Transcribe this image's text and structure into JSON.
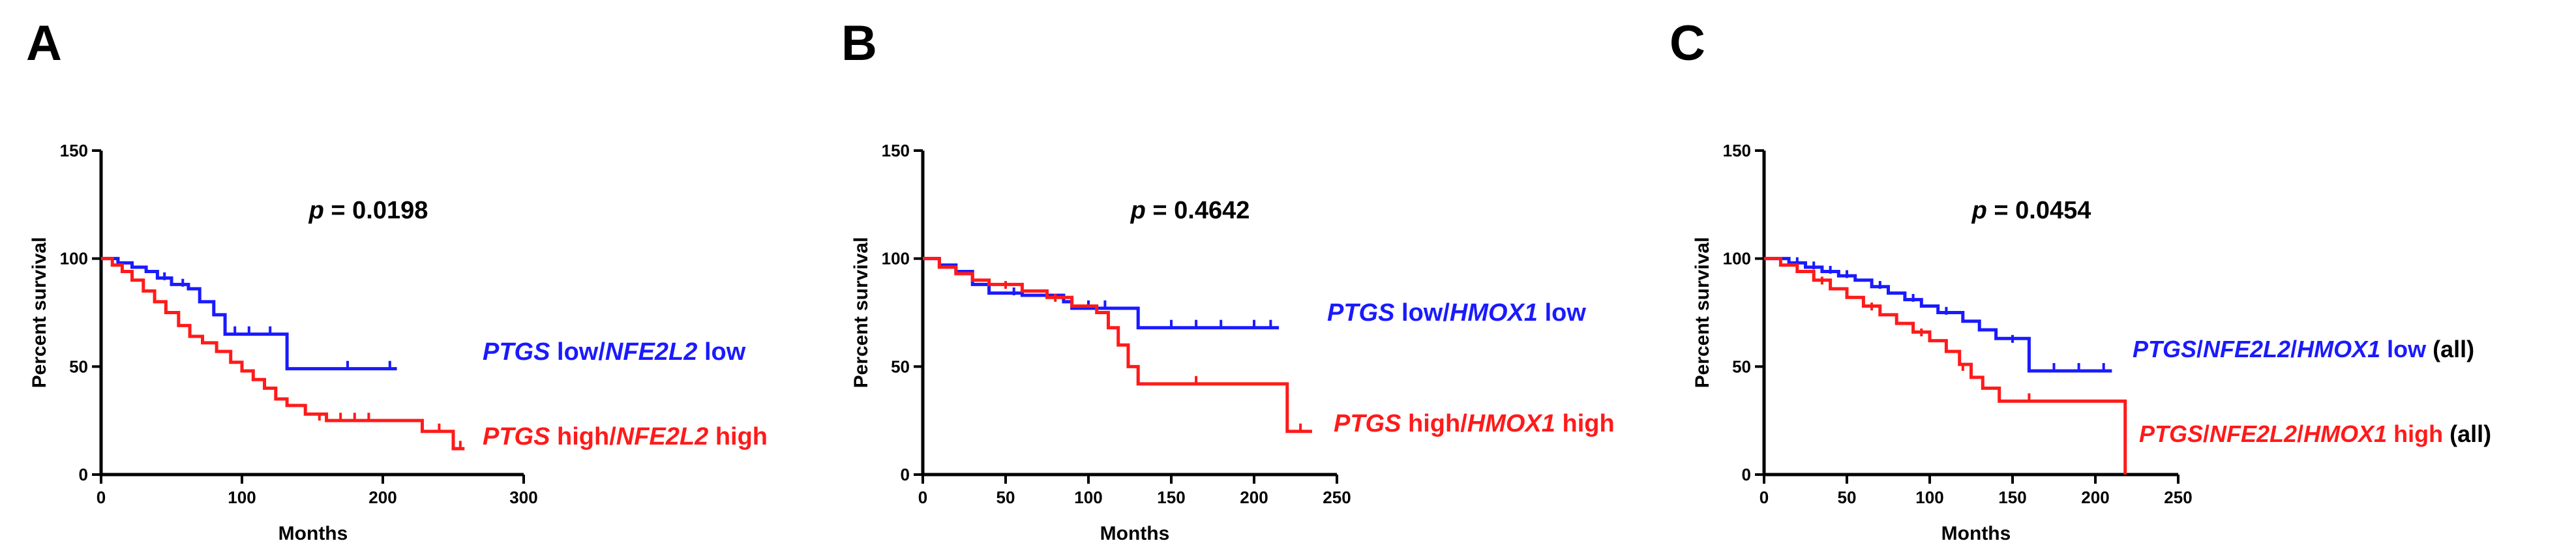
{
  "colors": {
    "blue": "#1a1aff",
    "red": "#ff1a1a",
    "axis": "#000000"
  },
  "chart_data": [
    {
      "type": "line",
      "panel": "A",
      "title": "",
      "xlabel": "Months",
      "ylabel": "Percent survival",
      "xlim": [
        0,
        300
      ],
      "ylim": [
        0,
        150
      ],
      "xticks": [
        0,
        100,
        200,
        300
      ],
      "yticks": [
        0,
        50,
        100,
        150
      ],
      "pvalue": {
        "label": "p",
        "value": "= 0.0198"
      },
      "series": [
        {
          "name": "PTGS low/NFE2L2 low",
          "color": "blue",
          "legend": [
            {
              "text": "PTGS",
              "italic": true
            },
            {
              "text": " low/",
              "italic": false
            },
            {
              "text": "NFE2L2",
              "italic": true
            },
            {
              "text": " low",
              "italic": false
            }
          ],
          "steps": [
            [
              0,
              100
            ],
            [
              12,
              98
            ],
            [
              22,
              96
            ],
            [
              32,
              94
            ],
            [
              40,
              91
            ],
            [
              50,
              88
            ],
            [
              62,
              86
            ],
            [
              70,
              80
            ],
            [
              80,
              74
            ],
            [
              88,
              65
            ],
            [
              132,
              65
            ],
            [
              132,
              49
            ],
            [
              210,
              49
            ]
          ],
          "censors": [
            [
              45,
              90
            ],
            [
              58,
              87
            ],
            [
              95,
              65
            ],
            [
              105,
              65
            ],
            [
              120,
              65
            ],
            [
              175,
              49
            ],
            [
              205,
              49
            ]
          ]
        },
        {
          "name": "PTGS high/NFE2L2 high",
          "color": "red",
          "legend": [
            {
              "text": "PTGS",
              "italic": true
            },
            {
              "text": " high/",
              "italic": false
            },
            {
              "text": "NFE2L2",
              "italic": true
            },
            {
              "text": " high",
              "italic": false
            }
          ],
          "steps": [
            [
              0,
              100
            ],
            [
              8,
              97
            ],
            [
              15,
              94
            ],
            [
              22,
              90
            ],
            [
              30,
              85
            ],
            [
              38,
              80
            ],
            [
              46,
              75
            ],
            [
              55,
              69
            ],
            [
              63,
              64
            ],
            [
              72,
              61
            ],
            [
              82,
              57
            ],
            [
              92,
              52
            ],
            [
              100,
              48
            ],
            [
              108,
              44
            ],
            [
              116,
              40
            ],
            [
              124,
              35
            ],
            [
              132,
              32
            ],
            [
              145,
              28
            ],
            [
              160,
              25
            ],
            [
              228,
              25
            ],
            [
              228,
              20
            ],
            [
              250,
              20
            ],
            [
              250,
              12
            ],
            [
              258,
              12
            ]
          ],
          "censors": [
            [
              155,
              25
            ],
            [
              170,
              25
            ],
            [
              180,
              25
            ],
            [
              190,
              25
            ],
            [
              240,
              20
            ],
            [
              255,
              12
            ]
          ]
        }
      ]
    },
    {
      "type": "line",
      "panel": "B",
      "title": "",
      "xlabel": "Months",
      "ylabel": "Percent survival",
      "xlim": [
        0,
        250
      ],
      "ylim": [
        0,
        150
      ],
      "xticks": [
        0,
        50,
        100,
        150,
        200,
        250
      ],
      "yticks": [
        0,
        50,
        100,
        150
      ],
      "pvalue": {
        "label": "p",
        "value": "= 0.4642"
      },
      "series": [
        {
          "name": "PTGS low/HMOX1 low",
          "color": "blue",
          "legend": [
            {
              "text": "PTGS",
              "italic": true
            },
            {
              "text": " low/",
              "italic": false
            },
            {
              "text": "HMOX1",
              "italic": true
            },
            {
              "text": " low",
              "italic": false
            }
          ],
          "steps": [
            [
              0,
              100
            ],
            [
              10,
              97
            ],
            [
              20,
              94
            ],
            [
              30,
              88
            ],
            [
              40,
              84
            ],
            [
              60,
              83
            ],
            [
              85,
              80
            ],
            [
              90,
              77
            ],
            [
              130,
              77
            ],
            [
              130,
              68
            ],
            [
              215,
              68
            ]
          ],
          "censors": [
            [
              55,
              83
            ],
            [
              100,
              77
            ],
            [
              110,
              77
            ],
            [
              150,
              68
            ],
            [
              165,
              68
            ],
            [
              180,
              68
            ],
            [
              200,
              68
            ],
            [
              210,
              68
            ]
          ]
        },
        {
          "name": "PTGS high/HMOX1 high",
          "color": "red",
          "legend": [
            {
              "text": "PTGS",
              "italic": true
            },
            {
              "text": " high/",
              "italic": false
            },
            {
              "text": "HMOX1",
              "italic": true
            },
            {
              "text": " high",
              "italic": false
            }
          ],
          "steps": [
            [
              0,
              100
            ],
            [
              10,
              96
            ],
            [
              20,
              93
            ],
            [
              30,
              90
            ],
            [
              40,
              88
            ],
            [
              60,
              85
            ],
            [
              75,
              82
            ],
            [
              90,
              78
            ],
            [
              105,
              75
            ],
            [
              112,
              68
            ],
            [
              118,
              60
            ],
            [
              124,
              50
            ],
            [
              130,
              42
            ],
            [
              220,
              42
            ],
            [
              220,
              20
            ],
            [
              235,
              20
            ]
          ],
          "censors": [
            [
              50,
              86
            ],
            [
              80,
              80
            ],
            [
              165,
              42
            ],
            [
              228,
              20
            ]
          ]
        }
      ]
    },
    {
      "type": "line",
      "panel": "C",
      "title": "",
      "xlabel": "Months",
      "ylabel": "Percent survival",
      "xlim": [
        0,
        250
      ],
      "ylim": [
        0,
        150
      ],
      "xticks": [
        0,
        50,
        100,
        150,
        200,
        250
      ],
      "yticks": [
        0,
        50,
        100,
        150
      ],
      "pvalue": {
        "label": "p",
        "value": "= 0.0454"
      },
      "series": [
        {
          "name": "PTGS/NFE2L2/HMOX1 low (all)",
          "color": "blue",
          "legend": [
            {
              "text": "PTGS",
              "italic": true
            },
            {
              "text": "/",
              "italic": false
            },
            {
              "text": "NFE2L2",
              "italic": true
            },
            {
              "text": "/",
              "italic": false
            },
            {
              "text": "HMOX1",
              "italic": true
            },
            {
              "text": " low",
              "italic": false
            },
            {
              "text": " (all)",
              "italic": false,
              "color": "#000000"
            }
          ],
          "steps": [
            [
              0,
              100
            ],
            [
              15,
              98
            ],
            [
              25,
              96
            ],
            [
              35,
              94
            ],
            [
              45,
              92
            ],
            [
              55,
              90
            ],
            [
              65,
              87
            ],
            [
              75,
              84
            ],
            [
              85,
              81
            ],
            [
              95,
              78
            ],
            [
              105,
              75
            ],
            [
              120,
              71
            ],
            [
              130,
              67
            ],
            [
              140,
              63
            ],
            [
              160,
              60
            ],
            [
              160,
              48
            ],
            [
              210,
              48
            ]
          ],
          "censors": [
            [
              20,
              97
            ],
            [
              30,
              95
            ],
            [
              40,
              93
            ],
            [
              50,
              91
            ],
            [
              70,
              86
            ],
            [
              90,
              80
            ],
            [
              110,
              74
            ],
            [
              150,
              61
            ],
            [
              175,
              48
            ],
            [
              190,
              48
            ],
            [
              205,
              48
            ]
          ]
        },
        {
          "name": "PTGS/NFE2L2/HMOX1 high (all)",
          "color": "red",
          "legend": [
            {
              "text": "PTGS",
              "italic": true
            },
            {
              "text": "/",
              "italic": false
            },
            {
              "text": "NFE2L2",
              "italic": true
            },
            {
              "text": "/",
              "italic": false
            },
            {
              "text": "HMOX1",
              "italic": true
            },
            {
              "text": " high",
              "italic": false
            },
            {
              "text": " (all)",
              "italic": false,
              "color": "#000000"
            }
          ],
          "steps": [
            [
              0,
              100
            ],
            [
              10,
              97
            ],
            [
              20,
              94
            ],
            [
              30,
              90
            ],
            [
              40,
              86
            ],
            [
              50,
              82
            ],
            [
              60,
              78
            ],
            [
              70,
              74
            ],
            [
              80,
              70
            ],
            [
              90,
              66
            ],
            [
              100,
              62
            ],
            [
              110,
              57
            ],
            [
              118,
              51
            ],
            [
              125,
              45
            ],
            [
              132,
              40
            ],
            [
              142,
              34
            ],
            [
              218,
              34
            ],
            [
              218,
              0
            ]
          ],
          "censors": [
            [
              35,
              88
            ],
            [
              65,
              76
            ],
            [
              95,
              64
            ],
            [
              120,
              48
            ],
            [
              160,
              34
            ]
          ]
        }
      ]
    }
  ]
}
